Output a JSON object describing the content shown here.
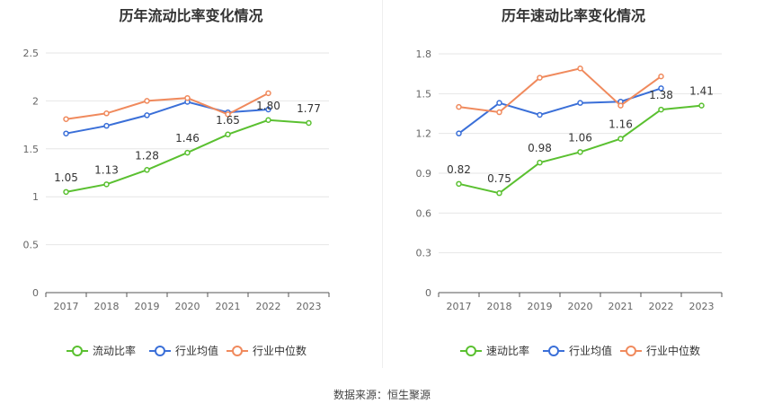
{
  "source_text": "数据来源：恒生聚源",
  "chart_data": [
    {
      "type": "line",
      "title": "历年流动比率变化情况",
      "categories": [
        "2017",
        "2018",
        "2019",
        "2020",
        "2021",
        "2022",
        "2023"
      ],
      "ylim": [
        0,
        2.5
      ],
      "yticks": [
        "0",
        "0.5",
        "1",
        "1.5",
        "2",
        "2.5"
      ],
      "grid": true,
      "legend_position": "bottom",
      "series": [
        {
          "name": "流动比率",
          "color": "#5ac030",
          "values": [
            1.05,
            1.13,
            1.28,
            1.46,
            1.65,
            1.8,
            1.77
          ],
          "labels": [
            "1.05",
            "1.13",
            "1.28",
            "1.46",
            "1.65",
            "1.80",
            "1.77"
          ]
        },
        {
          "name": "行业均值",
          "color": "#3a6fd8",
          "values": [
            1.66,
            1.74,
            1.85,
            1.99,
            1.88,
            1.91,
            null
          ]
        },
        {
          "name": "行业中位数",
          "color": "#f08a5d",
          "values": [
            1.81,
            1.87,
            2.0,
            2.03,
            1.86,
            2.08,
            null
          ]
        }
      ]
    },
    {
      "type": "line",
      "title": "历年速动比率变化情况",
      "categories": [
        "2017",
        "2018",
        "2019",
        "2020",
        "2021",
        "2022",
        "2023"
      ],
      "ylim": [
        0,
        1.8
      ],
      "yticks": [
        "0",
        "0.3",
        "0.6",
        "0.9",
        "1.2",
        "1.5",
        "1.8"
      ],
      "grid": true,
      "legend_position": "bottom",
      "series": [
        {
          "name": "速动比率",
          "color": "#5ac030",
          "values": [
            0.82,
            0.75,
            0.98,
            1.06,
            1.16,
            1.38,
            1.41
          ],
          "labels": [
            "0.82",
            "0.75",
            "0.98",
            "1.06",
            "1.16",
            "1.38",
            "1.41"
          ]
        },
        {
          "name": "行业均值",
          "color": "#3a6fd8",
          "values": [
            1.2,
            1.43,
            1.34,
            1.43,
            1.44,
            1.54,
            null
          ]
        },
        {
          "name": "行业中位数",
          "color": "#f08a5d",
          "values": [
            1.4,
            1.36,
            1.62,
            1.69,
            1.41,
            1.63,
            null
          ]
        }
      ]
    }
  ]
}
